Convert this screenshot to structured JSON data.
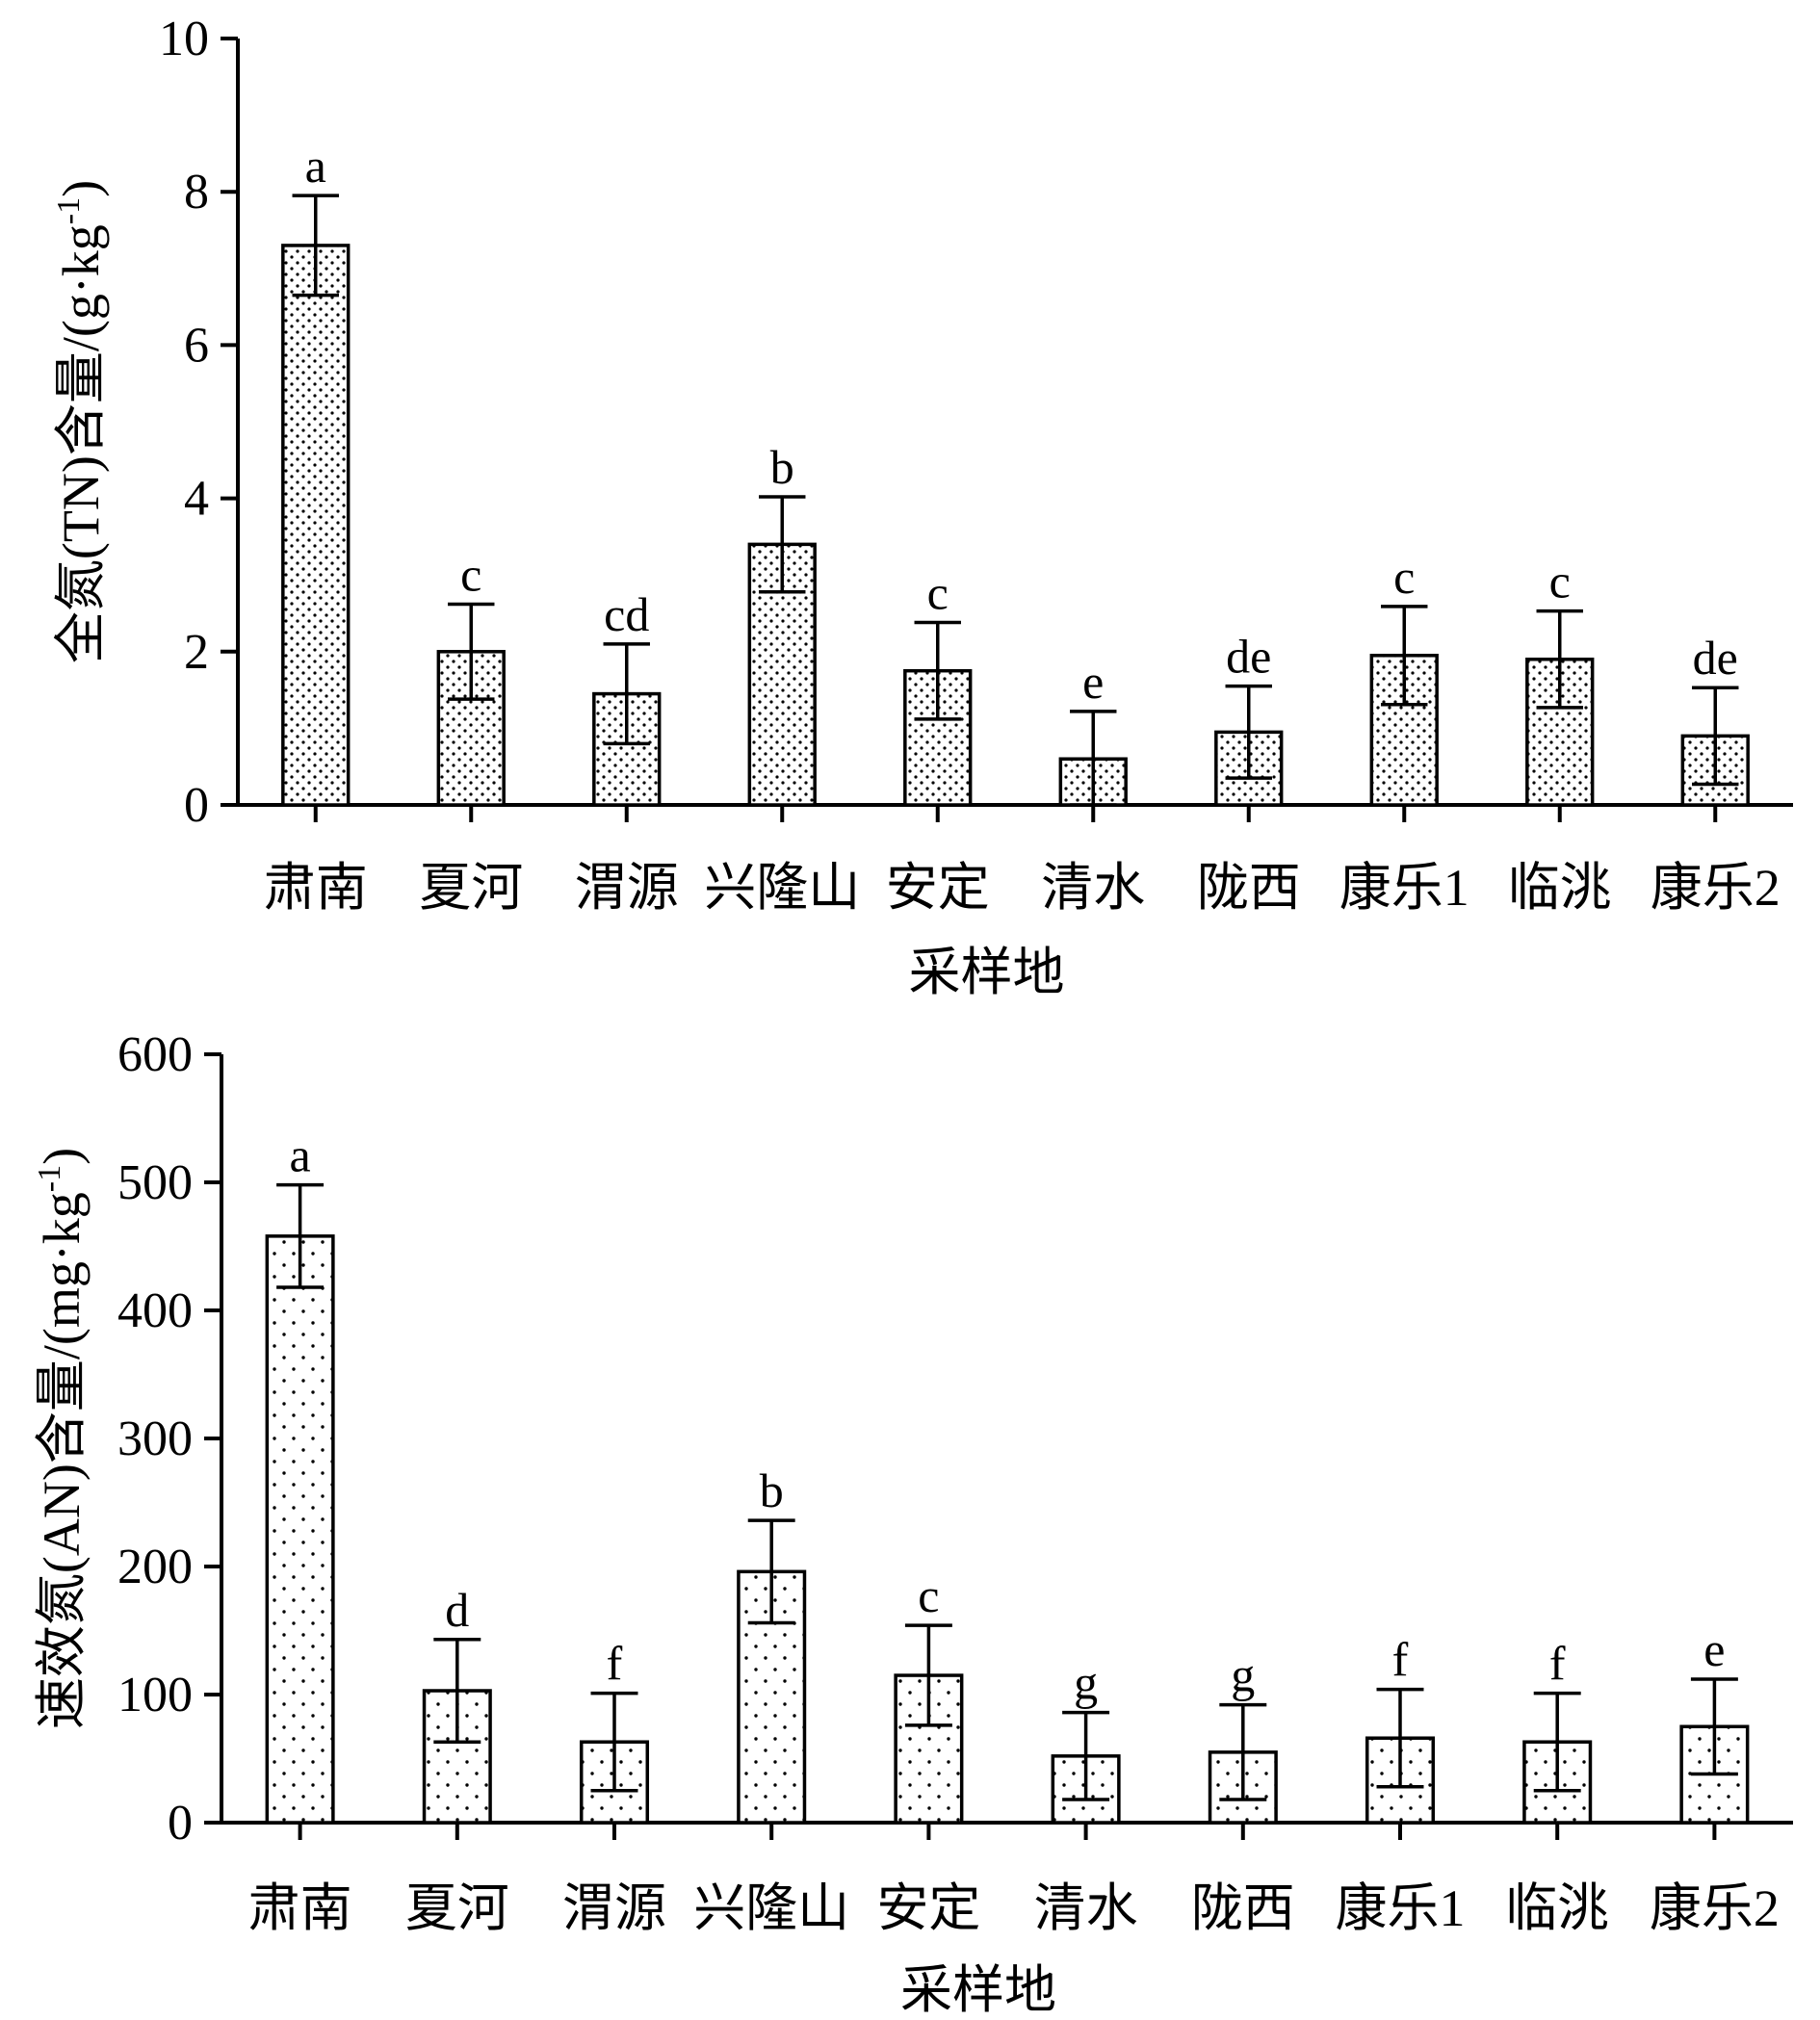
{
  "chart_data": [
    {
      "type": "bar",
      "categories": [
        "肃南",
        "夏河",
        "渭源",
        "兴隆山",
        "安定",
        "清水",
        "陇西",
        "康乐1",
        "临洮",
        "康乐2"
      ],
      "values": [
        7.3,
        2.0,
        1.45,
        3.4,
        1.75,
        0.6,
        0.95,
        1.95,
        1.9,
        0.9
      ],
      "errors": [
        0.65,
        0.62,
        0.65,
        0.62,
        0.63,
        0.62,
        0.6,
        0.64,
        0.63,
        0.63
      ],
      "significance": [
        "a",
        "c",
        "cd",
        "b",
        "c",
        "e",
        "de",
        "c",
        "c",
        "de"
      ],
      "xlabel": "采样地",
      "ylabel": "全氮(TN)含量/(g·kg",
      "ylabel_sup": "-1",
      "ylabel_end": ")",
      "ylim": [
        0,
        10
      ],
      "yticks": [
        0,
        2,
        4,
        6,
        8,
        10
      ],
      "pattern": "dense-dots",
      "grid": false
    },
    {
      "type": "bar",
      "categories": [
        "肃南",
        "夏河",
        "渭源",
        "兴隆山",
        "安定",
        "清水",
        "陇西",
        "康乐1",
        "临洮",
        "康乐2"
      ],
      "values": [
        458,
        103,
        63,
        196,
        115,
        52,
        55,
        66,
        63,
        75
      ],
      "errors": [
        40,
        40,
        38,
        40,
        39,
        34,
        37,
        38,
        38,
        37
      ],
      "significance": [
        "a",
        "d",
        "f",
        "b",
        "c",
        "g",
        "g",
        "f",
        "f",
        "e"
      ],
      "xlabel": "采样地",
      "ylabel": "速效氮(AN)含量/(mg·kg",
      "ylabel_sup": "-1",
      "ylabel_end": ")",
      "ylim": [
        0,
        600
      ],
      "yticks": [
        0,
        100,
        200,
        300,
        400,
        500,
        600
      ],
      "pattern": "sparse-dots",
      "grid": false
    }
  ]
}
